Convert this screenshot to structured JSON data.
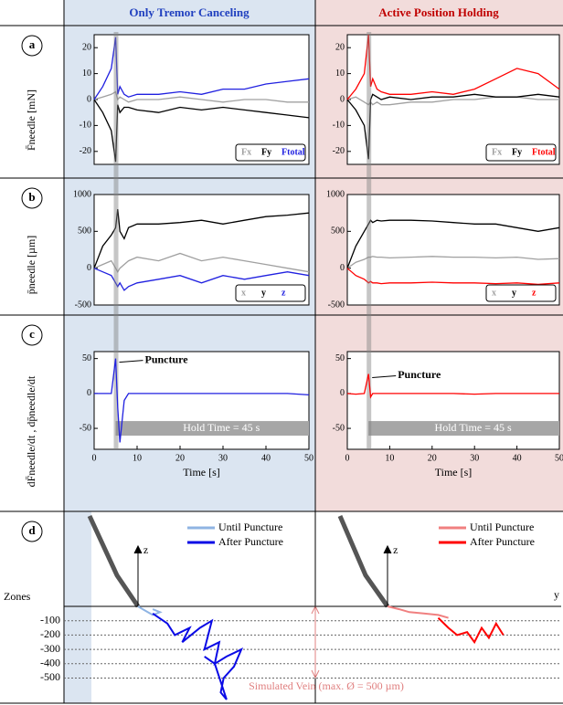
{
  "columns": [
    "Only Tremor Canceling",
    "Active Position Holding"
  ],
  "rows": [
    {
      "panel": "a",
      "ylabel": "F̄needle [mN]"
    },
    {
      "panel": "b",
      "ylabel": "p̄needle [µm]"
    },
    {
      "panel": "c",
      "ylabel": "dF̄needle/dt , dp̄needle/dt"
    },
    {
      "panel": "d"
    }
  ],
  "chart_data": [
    {
      "type": "line",
      "xlim": [
        0,
        50
      ],
      "ylim": [
        -25,
        25
      ],
      "yticks": [
        -20,
        -10,
        0,
        10,
        20
      ],
      "x": [
        0,
        2,
        4,
        5,
        5.5,
        6,
        7,
        8,
        10,
        15,
        20,
        25,
        30,
        35,
        40,
        45,
        50
      ],
      "series": [
        {
          "name": "Fx",
          "color": "#a0a0a0",
          "values": [
            0,
            1,
            2,
            3,
            0,
            1,
            0,
            -1,
            0,
            0,
            1,
            0,
            -1,
            0,
            0,
            -1,
            -1
          ]
        },
        {
          "name": "Fy",
          "color": "#000000",
          "values": [
            0,
            -5,
            -12,
            -24,
            -2,
            -5,
            -3,
            -3,
            -4,
            -5,
            -3,
            -4,
            -3,
            -4,
            -5,
            -6,
            -7
          ]
        },
        {
          "name": "Ftotal",
          "color": "#2020e0",
          "values": [
            0,
            5,
            12,
            24,
            2,
            5,
            2,
            1,
            2,
            2,
            3,
            2,
            4,
            4,
            6,
            7,
            8
          ]
        }
      ]
    },
    {
      "type": "line",
      "xlim": [
        0,
        50
      ],
      "ylim": [
        -25,
        25
      ],
      "yticks": [
        -20,
        -10,
        0,
        10,
        20
      ],
      "x": [
        0,
        2,
        4,
        5,
        5.5,
        6,
        7,
        8,
        10,
        15,
        20,
        25,
        30,
        35,
        40,
        45,
        50
      ],
      "series": [
        {
          "name": "Fx",
          "color": "#a0a0a0",
          "values": [
            0,
            1,
            -1,
            -2,
            -1,
            -2,
            -1,
            -2,
            -2,
            -1,
            -1,
            0,
            0,
            1,
            1,
            0,
            0
          ]
        },
        {
          "name": "Fy",
          "color": "#000000",
          "values": [
            0,
            -4,
            -10,
            -23,
            0,
            2,
            1,
            0,
            1,
            0,
            1,
            1,
            2,
            1,
            1,
            2,
            1
          ]
        },
        {
          "name": "Ftotal",
          "color": "#ff0000",
          "values": [
            0,
            4,
            10,
            25,
            5,
            8,
            4,
            3,
            2,
            2,
            3,
            2,
            4,
            8,
            12,
            10,
            4
          ]
        }
      ]
    },
    {
      "type": "line",
      "xlim": [
        0,
        50
      ],
      "ylim": [
        -500,
        1000
      ],
      "yticks": [
        -500,
        0,
        500,
        1000
      ],
      "x": [
        0,
        2,
        4,
        5,
        5.5,
        6,
        7,
        8,
        10,
        15,
        20,
        25,
        30,
        35,
        40,
        45,
        50
      ],
      "series": [
        {
          "name": "x",
          "color": "#a0a0a0",
          "values": [
            0,
            50,
            100,
            0,
            -50,
            0,
            50,
            100,
            150,
            100,
            200,
            100,
            150,
            100,
            50,
            0,
            -50
          ]
        },
        {
          "name": "y",
          "color": "#000000",
          "values": [
            0,
            300,
            450,
            550,
            800,
            500,
            400,
            550,
            600,
            600,
            620,
            650,
            600,
            650,
            700,
            720,
            750
          ]
        },
        {
          "name": "z",
          "color": "#2020e0",
          "values": [
            0,
            -50,
            -100,
            -200,
            -250,
            -200,
            -300,
            -250,
            -200,
            -150,
            -100,
            -200,
            -100,
            -150,
            -100,
            -50,
            -100
          ]
        }
      ]
    },
    {
      "type": "line",
      "xlim": [
        0,
        50
      ],
      "ylim": [
        -500,
        1000
      ],
      "yticks": [
        -500,
        0,
        500,
        1000
      ],
      "x": [
        0,
        2,
        4,
        5,
        5.5,
        6,
        7,
        8,
        10,
        15,
        20,
        25,
        30,
        35,
        40,
        45,
        50
      ],
      "series": [
        {
          "name": "x",
          "color": "#a0a0a0",
          "values": [
            0,
            80,
            120,
            150,
            150,
            160,
            150,
            150,
            140,
            150,
            160,
            150,
            150,
            140,
            150,
            120,
            130
          ]
        },
        {
          "name": "y",
          "color": "#000000",
          "values": [
            0,
            300,
            500,
            600,
            650,
            620,
            650,
            640,
            650,
            650,
            640,
            620,
            600,
            600,
            550,
            500,
            550
          ]
        },
        {
          "name": "z",
          "color": "#ff0000",
          "values": [
            0,
            -100,
            -150,
            -200,
            -180,
            -200,
            -200,
            -210,
            -200,
            -200,
            -190,
            -200,
            -200,
            -210,
            -200,
            -220,
            -200
          ]
        }
      ]
    },
    {
      "type": "line",
      "xlim": [
        0,
        50
      ],
      "ylim": [
        -80,
        60
      ],
      "yticks": [
        -50,
        0,
        50
      ],
      "xticks": [
        0,
        10,
        20,
        30,
        40,
        50
      ],
      "xlabel": "Time [s]",
      "annotation": "Puncture",
      "hold_label": "Hold Time = 45 s",
      "hold": [
        5,
        50
      ],
      "x": [
        0,
        2,
        4,
        5,
        5.5,
        6,
        7,
        8,
        10,
        15,
        20,
        25,
        30,
        35,
        40,
        45,
        50
      ],
      "series": [
        {
          "color": "#2020e0",
          "values": [
            0,
            0,
            0,
            50,
            -20,
            -70,
            -10,
            0,
            0,
            0,
            0,
            0,
            0,
            0,
            0,
            0,
            -2
          ]
        }
      ]
    },
    {
      "type": "line",
      "xlim": [
        0,
        50
      ],
      "ylim": [
        -80,
        60
      ],
      "yticks": [
        -50,
        0,
        50
      ],
      "xticks": [
        0,
        10,
        20,
        30,
        40,
        50
      ],
      "xlabel": "Time [s]",
      "annotation": "Puncture",
      "hold_label": "Hold Time = 45 s",
      "hold": [
        5,
        50
      ],
      "x": [
        0,
        2,
        4,
        5,
        5.5,
        6,
        7,
        8,
        10,
        15,
        20,
        25,
        30,
        35,
        40,
        45,
        50
      ],
      "series": [
        {
          "color": "#ff0000",
          "values": [
            0,
            -1,
            0,
            28,
            -5,
            0,
            0,
            0,
            0,
            0,
            0,
            0,
            -1,
            0,
            0,
            0,
            0
          ]
        }
      ]
    },
    {
      "type": "trajectory",
      "xlim": [
        -500,
        1200
      ],
      "ylim": [
        -650,
        650
      ],
      "yticks": [
        -100,
        -200,
        -300,
        -400,
        -500
      ],
      "ylabel": "Zones",
      "axis_labels": [
        "z"
      ],
      "annotation": "Simulated Vein (max. Ø = 500 µm)",
      "series": [
        {
          "name": "Until Puncture",
          "color": "#8fb4e3",
          "x": [
            0,
            50,
            100,
            150,
            100
          ],
          "values": [
            0,
            -30,
            -60,
            -40,
            -20
          ]
        },
        {
          "name": "After Puncture",
          "color": "#0a0ae6",
          "x": [
            100,
            200,
            250,
            350,
            300,
            420,
            500,
            450,
            550,
            520,
            600,
            700,
            650,
            580,
            560,
            600,
            520,
            450
          ],
          "values": [
            -50,
            -120,
            -200,
            -150,
            -250,
            -150,
            -100,
            -300,
            -250,
            -400,
            -350,
            -300,
            -420,
            -500,
            -600,
            -650,
            -400,
            -350
          ]
        }
      ]
    },
    {
      "type": "trajectory",
      "xlim": [
        -500,
        1200
      ],
      "ylim": [
        -650,
        650
      ],
      "axis_labels": [
        "z",
        "y"
      ],
      "series": [
        {
          "name": "Until Puncture",
          "color": "#f08080",
          "x": [
            0,
            80,
            150,
            250,
            350,
            420
          ],
          "values": [
            0,
            -20,
            -40,
            -50,
            -60,
            -80
          ]
        },
        {
          "name": "After Puncture",
          "color": "#ff0000",
          "x": [
            350,
            420,
            480,
            550,
            600,
            650,
            700,
            750,
            800
          ],
          "values": [
            -80,
            -150,
            -200,
            -180,
            -250,
            -150,
            -220,
            -120,
            -200
          ]
        }
      ]
    }
  ]
}
